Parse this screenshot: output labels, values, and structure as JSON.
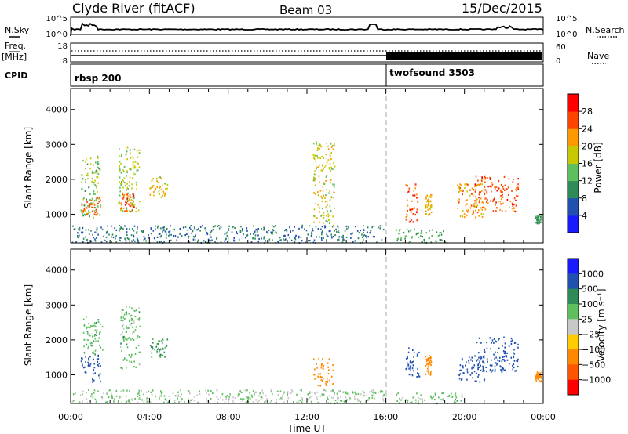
{
  "header": {
    "station": "Clyde River (fitACF)",
    "beam": "Beam 03",
    "date": "15/Dec/2015"
  },
  "top_panels": {
    "nsky_label": "N.Sky",
    "nsearch_label": "N.Search",
    "freq_label_1": "Freq.",
    "freq_label_2": "[MHz]",
    "nave_label": "Nave",
    "cpid_label": "CPID",
    "nsky_ticks": [
      "10^5",
      "10^0"
    ],
    "nsearch_ticks": [
      "10^5",
      "10^0"
    ],
    "freq_ticks": [
      "18",
      "8"
    ],
    "nave_ticks": [
      "60",
      "0"
    ],
    "cpid_segments": [
      {
        "name": "rbsp 200",
        "start": 0,
        "end": 16
      },
      {
        "name": "twofsound 3503",
        "start": 16,
        "end": 24
      }
    ],
    "mode_change_hour": 16
  },
  "chart_data": [
    {
      "type": "heatmap",
      "title": "",
      "xlabel": "Time UT",
      "ylabel": "Slant Range [km]",
      "x_ticks": [
        "00:00",
        "04:00",
        "08:00",
        "12:00",
        "16:00",
        "20:00",
        "00:00"
      ],
      "xlim": [
        0,
        24
      ],
      "y_ticks": [
        "1000",
        "2000",
        "3000",
        "4000"
      ],
      "ylim": [
        180,
        4600
      ],
      "colorbar": {
        "label": "Power [dB]",
        "ticks": [
          "4",
          "8",
          "12",
          "16",
          "20",
          "24",
          "28"
        ],
        "range": [
          0,
          32
        ],
        "colors": [
          "#1a1aff",
          "#2050b0",
          "#2e8b57",
          "#5fbf5f",
          "#c8c800",
          "#ff9900",
          "#ff4400",
          "#ff0000"
        ]
      },
      "patches": [
        {
          "t0": 0.5,
          "t1": 1.5,
          "r0": 900,
          "r1": 2700,
          "value": 14
        },
        {
          "t0": 0.5,
          "t1": 1.5,
          "r0": 1000,
          "r1": 1500,
          "value": 24
        },
        {
          "t0": 2.4,
          "t1": 3.5,
          "r0": 1100,
          "r1": 3000,
          "value": 16
        },
        {
          "t0": 2.5,
          "t1": 3.2,
          "r0": 1100,
          "r1": 1600,
          "value": 26
        },
        {
          "t0": 4.0,
          "t1": 4.9,
          "r0": 1500,
          "r1": 2100,
          "value": 18
        },
        {
          "t0": 0.0,
          "t1": 16.0,
          "r0": 200,
          "r1": 700,
          "value": 8
        },
        {
          "t0": 12.3,
          "t1": 13.4,
          "r0": 700,
          "r1": 3100,
          "value": 18
        },
        {
          "t0": 16.5,
          "t1": 19.2,
          "r0": 200,
          "r1": 600,
          "value": 12
        },
        {
          "t0": 17.0,
          "t1": 17.6,
          "r0": 800,
          "r1": 1900,
          "value": 26
        },
        {
          "t0": 18.0,
          "t1": 18.3,
          "r0": 1000,
          "r1": 1600,
          "value": 20
        },
        {
          "t0": 19.6,
          "t1": 21.0,
          "r0": 900,
          "r1": 1900,
          "value": 22
        },
        {
          "t0": 20.5,
          "t1": 22.7,
          "r0": 1100,
          "r1": 2100,
          "value": 26
        },
        {
          "t0": 23.6,
          "t1": 23.9,
          "r0": 750,
          "r1": 1000,
          "value": 12
        }
      ]
    },
    {
      "type": "heatmap",
      "title": "",
      "xlabel": "Time UT",
      "ylabel": "Slant Range [km]",
      "x_ticks": [
        "00:00",
        "04:00",
        "08:00",
        "12:00",
        "16:00",
        "20:00",
        "00:00"
      ],
      "xlim": [
        0,
        24
      ],
      "y_ticks": [
        "1000",
        "2000",
        "3000",
        "4000"
      ],
      "ylim": [
        180,
        4600
      ],
      "colorbar": {
        "label": "Velocity [m s⁻¹]",
        "ticks": [
          "1000",
          "500",
          "100",
          "25",
          "−25",
          "−100",
          "−500",
          "−1000"
        ],
        "colors": [
          "#1a1aff",
          "#2050b0",
          "#2e8b57",
          "#5fbf5f",
          "#c8c8c8",
          "#ffcc00",
          "#ff8800",
          "#ff5500",
          "#ff0000"
        ]
      },
      "patches": [
        {
          "t0": 0.5,
          "t1": 1.5,
          "r0": 800,
          "r1": 1600,
          "value": 700
        },
        {
          "t0": 0.6,
          "t1": 1.6,
          "r0": 1600,
          "r1": 2700,
          "value": 80
        },
        {
          "t0": 2.5,
          "t1": 3.5,
          "r0": 1200,
          "r1": 3000,
          "value": 60
        },
        {
          "t0": 4.0,
          "t1": 4.9,
          "r0": 1500,
          "r1": 2100,
          "value": 120
        },
        {
          "t0": 0.0,
          "t1": 16.0,
          "r0": 200,
          "r1": 600,
          "value": 30
        },
        {
          "t0": 12.3,
          "t1": 13.3,
          "r0": 700,
          "r1": 1500,
          "value": -300
        },
        {
          "t0": 16.5,
          "t1": 20.0,
          "r0": 200,
          "r1": 500,
          "value": 60
        },
        {
          "t0": 17.0,
          "t1": 17.7,
          "r0": 900,
          "r1": 1800,
          "value": 700
        },
        {
          "t0": 18.0,
          "t1": 18.3,
          "r0": 1000,
          "r1": 1600,
          "value": -300
        },
        {
          "t0": 19.7,
          "t1": 21.0,
          "r0": 800,
          "r1": 1600,
          "value": 800
        },
        {
          "t0": 20.6,
          "t1": 22.7,
          "r0": 1100,
          "r1": 2100,
          "value": 900
        },
        {
          "t0": 23.6,
          "t1": 23.9,
          "r0": 800,
          "r1": 1100,
          "value": -300
        }
      ]
    }
  ]
}
